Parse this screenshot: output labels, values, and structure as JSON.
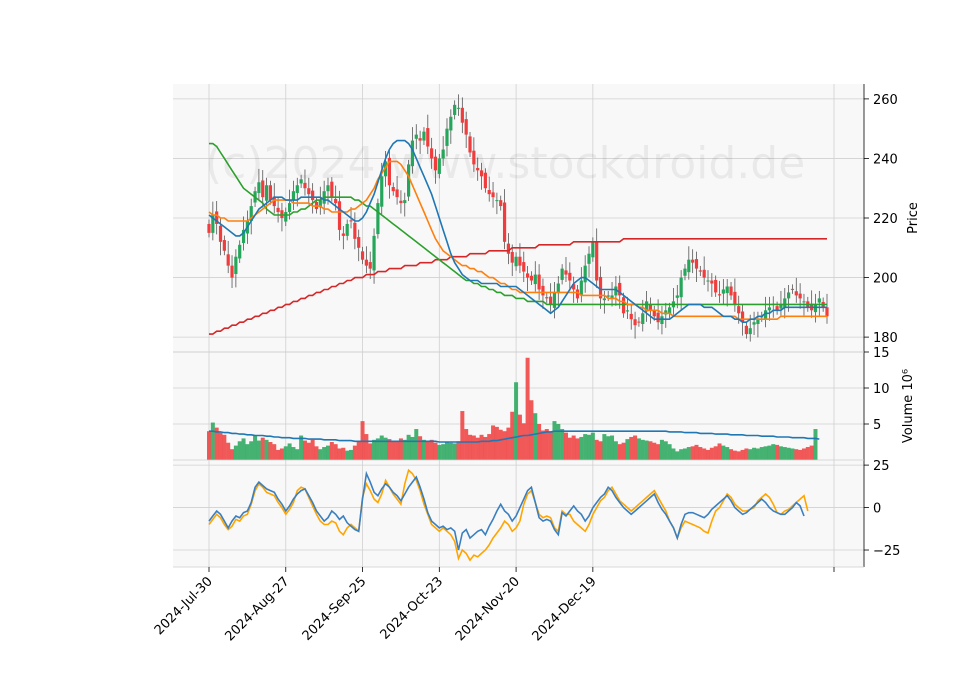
{
  "chart_data": {
    "type": "candlestick",
    "watermark": "(c)2024 www.stockdroid.de",
    "x_tick_labels": [
      "2024-Jul-30",
      "2024-Aug-27",
      "2024-Sep-25",
      "2024-Oct-23",
      "2024-Nov-20",
      "2024-Dec-19"
    ],
    "price_panel": {
      "ylabel": "Price",
      "ylim": [
        175,
        265
      ],
      "yticks": [
        180,
        200,
        220,
        240,
        260
      ],
      "colors": {
        "up": "#26a65b",
        "down": "#f03c3c",
        "ma_fast": "#1f77b4",
        "ma_mid": "#ff7f0e",
        "ma_slow": "#2ca02c",
        "ma_long": "#d62728"
      },
      "close": [
        215,
        221,
        218,
        212,
        209,
        204,
        200,
        207,
        211,
        216,
        219,
        224,
        229,
        232,
        227,
        231,
        226,
        224,
        222,
        220,
        222,
        225,
        229,
        231,
        233,
        230,
        228,
        226,
        223,
        226,
        229,
        231,
        227,
        225,
        216,
        214,
        218,
        219,
        213,
        210,
        206,
        204,
        203,
        214,
        225,
        234,
        239,
        231,
        229,
        227,
        225,
        226,
        238,
        246,
        248,
        246,
        249,
        244,
        240,
        236,
        240,
        243,
        250,
        254,
        258,
        257,
        252,
        248,
        242,
        238,
        236,
        234,
        230,
        228,
        227,
        226,
        224,
        212,
        208,
        205,
        207,
        204,
        202,
        200,
        199,
        201,
        196,
        194,
        193,
        191,
        195,
        198,
        203,
        201,
        199,
        196,
        193,
        199,
        204,
        208,
        212,
        199,
        193,
        193,
        194,
        194,
        197,
        194,
        188,
        189,
        186,
        184,
        185,
        188,
        192,
        189,
        187,
        185,
        187,
        189,
        190,
        192,
        194,
        200,
        203,
        206,
        205,
        203,
        202,
        200,
        199,
        198,
        195,
        194,
        196,
        197,
        194,
        191,
        188,
        185,
        181,
        183,
        185,
        186,
        187,
        189,
        190,
        191,
        189,
        191,
        193,
        195,
        196,
        194,
        193,
        192,
        190,
        189,
        191,
        193,
        190,
        187
      ],
      "ma_fast": [
        221,
        220,
        219,
        218,
        217,
        216,
        215,
        214,
        214,
        215,
        217,
        219,
        221,
        223,
        224,
        225,
        226,
        227,
        227,
        227,
        226,
        226,
        226,
        226,
        227,
        227,
        227,
        227,
        227,
        227,
        226,
        226,
        225,
        224,
        223,
        222,
        221,
        220,
        219,
        219,
        220,
        222,
        225,
        228,
        232,
        236,
        240,
        243,
        245,
        246,
        246,
        246,
        245,
        243,
        240,
        237,
        234,
        231,
        228,
        224,
        220,
        216,
        212,
        208,
        205,
        203,
        201,
        200,
        199,
        199,
        199,
        198,
        198,
        198,
        198,
        198,
        197,
        197,
        197,
        197,
        197,
        196,
        195,
        194,
        193,
        192,
        191,
        190,
        189,
        188,
        189,
        190,
        192,
        194,
        196,
        198,
        199,
        200,
        200,
        199,
        198,
        197,
        196,
        196,
        196,
        196,
        196,
        195,
        194,
        193,
        192,
        191,
        190,
        189,
        188,
        187,
        186,
        186,
        186,
        186,
        186,
        187,
        188,
        189,
        190,
        191,
        191,
        191,
        191,
        190,
        190,
        190,
        189,
        188,
        187,
        187,
        187,
        186,
        186,
        185,
        185,
        186,
        186,
        187,
        187,
        188,
        188,
        189,
        189,
        189,
        190,
        190,
        190,
        190,
        190,
        190,
        190,
        190,
        190,
        190,
        190,
        190
      ],
      "ma_mid": [
        222,
        221,
        221,
        220,
        220,
        219,
        219,
        219,
        219,
        219,
        219,
        220,
        221,
        222,
        223,
        224,
        225,
        226,
        226,
        226,
        226,
        226,
        225,
        225,
        225,
        225,
        225,
        224,
        224,
        224,
        223,
        223,
        222,
        222,
        222,
        222,
        222,
        223,
        223,
        224,
        225,
        226,
        228,
        230,
        233,
        235,
        237,
        239,
        239,
        239,
        238,
        236,
        234,
        231,
        228,
        225,
        222,
        219,
        216,
        213,
        211,
        209,
        208,
        207,
        206,
        205,
        204,
        204,
        203,
        203,
        202,
        202,
        201,
        200,
        200,
        199,
        198,
        198,
        197,
        196,
        196,
        195,
        195,
        195,
        195,
        195,
        195,
        195,
        195,
        195,
        195,
        195,
        195,
        195,
        195,
        195,
        195,
        194,
        194,
        194,
        194,
        194,
        194,
        194,
        193,
        193,
        193,
        192,
        192,
        191,
        191,
        191,
        190,
        190,
        189,
        189,
        189,
        189,
        188,
        188,
        188,
        187,
        187,
        187,
        187,
        187,
        187,
        187,
        187,
        187,
        187,
        187,
        187,
        187,
        187,
        187,
        187,
        187,
        186,
        186,
        186,
        186,
        186,
        186,
        186,
        186,
        186,
        186,
        186,
        187,
        187,
        187,
        187,
        187,
        187,
        187,
        187,
        187,
        187,
        187,
        187,
        187
      ],
      "ma_slow": [
        245,
        245,
        244,
        242,
        240,
        238,
        236,
        234,
        232,
        230,
        229,
        228,
        227,
        226,
        225,
        223,
        222,
        221,
        221,
        221,
        221,
        221,
        222,
        222,
        223,
        223,
        224,
        225,
        226,
        226,
        227,
        227,
        227,
        227,
        227,
        227,
        227,
        227,
        226,
        226,
        225,
        224,
        224,
        223,
        222,
        221,
        220,
        219,
        218,
        217,
        216,
        215,
        214,
        213,
        212,
        211,
        210,
        209,
        208,
        207,
        206,
        205,
        204,
        203,
        202,
        201,
        200,
        199,
        199,
        198,
        198,
        197,
        197,
        196,
        196,
        195,
        195,
        194,
        194,
        194,
        193,
        193,
        193,
        192,
        192,
        192,
        192,
        192,
        191,
        191,
        191,
        191,
        191,
        191,
        191,
        191,
        191,
        191,
        191,
        191,
        191,
        191,
        191,
        191,
        191,
        191,
        191,
        191,
        191,
        191,
        191,
        191,
        191,
        191,
        191,
        191,
        191,
        191,
        191,
        191,
        191,
        191,
        191,
        191,
        191,
        191,
        191,
        191,
        191,
        191,
        191,
        191,
        191,
        191,
        191,
        191,
        191,
        191,
        191,
        191,
        191,
        191,
        191,
        191,
        191,
        191,
        191,
        191,
        191,
        191,
        191,
        191,
        191,
        191,
        191,
        191,
        191,
        191,
        191,
        191,
        191,
        191
      ],
      "ma_long": [
        181,
        181,
        182,
        182,
        183,
        183,
        184,
        184,
        185,
        185,
        186,
        186,
        187,
        187,
        188,
        188,
        189,
        189,
        190,
        190,
        191,
        191,
        192,
        192,
        193,
        193,
        194,
        194,
        195,
        195,
        196,
        196,
        197,
        197,
        198,
        198,
        199,
        199,
        200,
        200,
        200,
        201,
        201,
        201,
        202,
        202,
        202,
        203,
        203,
        203,
        203,
        204,
        204,
        204,
        204,
        205,
        205,
        205,
        205,
        206,
        206,
        206,
        206,
        207,
        207,
        207,
        207,
        207,
        208,
        208,
        208,
        208,
        208,
        209,
        209,
        209,
        209,
        209,
        209,
        210,
        210,
        210,
        210,
        210,
        210,
        210,
        211,
        211,
        211,
        211,
        211,
        211,
        211,
        211,
        211,
        212,
        212,
        212,
        212,
        212,
        212,
        212,
        212,
        212,
        212,
        212,
        212,
        212,
        213,
        213,
        213,
        213,
        213,
        213,
        213,
        213,
        213,
        213,
        213,
        213,
        213,
        213,
        213,
        213,
        213,
        213,
        213,
        213,
        213,
        213,
        213,
        213,
        213,
        213,
        213,
        213,
        213,
        213,
        213,
        213,
        213,
        213,
        213,
        213,
        213,
        213,
        213,
        213,
        213,
        213,
        213,
        213,
        213,
        213,
        213,
        213,
        213,
        213,
        213,
        213,
        213,
        213
      ]
    },
    "volume_panel": {
      "ylabel": "Volume  10⁶",
      "ylim": [
        0,
        15
      ],
      "yticks": [
        5,
        10,
        15
      ],
      "ma_color": "#1f77b4",
      "volume": [
        4.0,
        5.2,
        4.5,
        3.8,
        3.5,
        2.4,
        1.5,
        2.0,
        2.6,
        3.0,
        2.2,
        2.6,
        3.4,
        2.7,
        3.1,
        2.8,
        2.5,
        2.2,
        1.4,
        1.6,
        1.9,
        2.3,
        1.8,
        1.5,
        3.4,
        2.7,
        2.4,
        2.8,
        1.9,
        1.5,
        1.8,
        2.0,
        2.5,
        2.2,
        1.6,
        1.7,
        1.3,
        1.4,
        2.0,
        2.6,
        5.4,
        3.6,
        2.3,
        2.8,
        3.0,
        3.4,
        3.1,
        2.9,
        2.6,
        2.5,
        3.0,
        2.8,
        3.5,
        3.2,
        4.3,
        3.3,
        2.8,
        2.6,
        2.8,
        2.4,
        2.1,
        2.2,
        2.5,
        2.4,
        2.3,
        2.6,
        6.8,
        4.3,
        3.5,
        3.4,
        3.1,
        3.5,
        3.2,
        3.6,
        4.8,
        4.6,
        4.2,
        4.0,
        4.5,
        6.7,
        10.8,
        6.3,
        5.1,
        14.2,
        8.3,
        6.5,
        5.0,
        4.1,
        4.3,
        3.9,
        5.4,
        5.0,
        4.3,
        3.8,
        3.1,
        3.4,
        3.0,
        3.2,
        3.6,
        3.5,
        3.8,
        2.8,
        2.6,
        3.6,
        3.3,
        3.4,
        2.6,
        2.2,
        2.4,
        2.9,
        3.2,
        3.4,
        3.0,
        2.8,
        2.7,
        2.6,
        2.4,
        2.2,
        2.8,
        2.6,
        2.2,
        1.6,
        1.2,
        1.5,
        1.6,
        1.8,
        1.9,
        2.1,
        1.8,
        1.6,
        1.4,
        1.7,
        1.9,
        2.3,
        2.0,
        1.8,
        1.5,
        1.3,
        1.2,
        1.4,
        1.6,
        1.5,
        1.7,
        1.6,
        1.8,
        1.9,
        2.0,
        2.2,
        2.1,
        1.9,
        1.8,
        1.7,
        1.6,
        1.5,
        1.4,
        1.6,
        1.8,
        2.0,
        4.3
      ],
      "volume_ma": [
        4.0,
        4.0,
        3.9,
        3.9,
        3.8,
        3.8,
        3.7,
        3.7,
        3.6,
        3.6,
        3.5,
        3.5,
        3.4,
        3.4,
        3.4,
        3.3,
        3.3,
        3.2,
        3.2,
        3.1,
        3.1,
        3.1,
        3.0,
        3.0,
        3.0,
        3.0,
        2.9,
        2.9,
        2.9,
        2.9,
        2.8,
        2.8,
        2.8,
        2.8,
        2.7,
        2.7,
        2.7,
        2.7,
        2.6,
        2.6,
        2.6,
        2.6,
        2.6,
        2.6,
        2.6,
        2.6,
        2.6,
        2.6,
        2.6,
        2.6,
        2.6,
        2.6,
        2.6,
        2.6,
        2.6,
        2.6,
        2.6,
        2.6,
        2.6,
        2.6,
        2.5,
        2.5,
        2.5,
        2.5,
        2.5,
        2.5,
        2.5,
        2.5,
        2.5,
        2.5,
        2.5,
        2.6,
        2.6,
        2.6,
        2.7,
        2.7,
        2.8,
        2.9,
        3.0,
        3.1,
        3.2,
        3.3,
        3.4,
        3.4,
        3.5,
        3.6,
        3.7,
        3.8,
        3.9,
        3.9,
        4.0,
        4.0,
        4.0,
        4.0,
        4.0,
        4.0,
        4.0,
        4.0,
        4.0,
        4.0,
        4.0,
        4.0,
        4.0,
        4.0,
        4.0,
        4.0,
        4.0,
        4.0,
        4.0,
        4.0,
        4.0,
        4.0,
        4.0,
        4.0,
        4.0,
        4.0,
        4.0,
        4.0,
        4.0,
        4.0,
        3.9,
        3.9,
        3.9,
        3.9,
        3.8,
        3.8,
        3.8,
        3.8,
        3.7,
        3.7,
        3.7,
        3.7,
        3.6,
        3.6,
        3.6,
        3.6,
        3.5,
        3.5,
        3.5,
        3.5,
        3.4,
        3.4,
        3.4,
        3.4,
        3.3,
        3.3,
        3.3,
        3.3,
        3.2,
        3.2,
        3.2,
        3.2,
        3.1,
        3.1,
        3.1,
        3.1,
        3.0,
        3.0,
        3.0,
        2.9
      ]
    },
    "oscillator_panel": {
      "ylim": [
        -35,
        28
      ],
      "yticks": [
        -25,
        0,
        25
      ],
      "colors": {
        "line1": "#3a7fc0",
        "line2": "#ffa500"
      },
      "line1": [
        -8,
        -5,
        -2,
        -4,
        -8,
        -12,
        -8,
        -5,
        -6,
        -3,
        -2,
        3,
        12,
        15,
        13,
        11,
        10,
        9,
        5,
        2,
        -2,
        1,
        5,
        8,
        10,
        11,
        7,
        3,
        -2,
        -5,
        -8,
        -6,
        -2,
        -4,
        -7,
        -5,
        -9,
        -11,
        -13,
        -14,
        5,
        20,
        15,
        9,
        7,
        11,
        14,
        12,
        9,
        7,
        4,
        8,
        12,
        15,
        18,
        12,
        5,
        -3,
        -8,
        -10,
        -12,
        -11,
        -13,
        -12,
        -14,
        -25,
        -15,
        -13,
        -18,
        -16,
        -14,
        -13,
        -16,
        -11,
        -7,
        -2,
        2,
        -2,
        -4,
        -8,
        -5,
        0,
        5,
        10,
        12,
        3,
        -6,
        -8,
        -7,
        -8,
        -13,
        -16,
        -3,
        -5,
        -2,
        1,
        -2,
        -4,
        -8,
        -5,
        0,
        3,
        6,
        8,
        12,
        10,
        6,
        3,
        0,
        -2,
        -4,
        -2,
        0,
        2,
        4,
        6,
        8,
        3,
        -1,
        -4,
        -8,
        -12,
        -18,
        -10,
        -4,
        -3,
        -3,
        -4,
        -5,
        -6,
        -4,
        -1,
        1,
        3,
        5,
        7,
        4,
        0,
        -2,
        -4,
        -3,
        -1,
        1,
        3,
        5,
        3,
        0,
        -2,
        -3,
        -4,
        -4,
        -2,
        0,
        3,
        1,
        -5
      ],
      "line2": [
        -10,
        -7,
        -4,
        -6,
        -10,
        -13,
        -11,
        -7,
        -8,
        -5,
        -4,
        2,
        10,
        14,
        12,
        9,
        8,
        7,
        3,
        0,
        -4,
        -1,
        3,
        10,
        12,
        11,
        6,
        1,
        -4,
        -8,
        -10,
        -10,
        -8,
        -9,
        -14,
        -16,
        -12,
        -10,
        -12,
        -14,
        6,
        14,
        10,
        5,
        3,
        8,
        16,
        12,
        8,
        5,
        2,
        14,
        22,
        20,
        16,
        10,
        2,
        -4,
        -10,
        -12,
        -14,
        -12,
        -14,
        -16,
        -20,
        -30,
        -25,
        -27,
        -31,
        -28,
        -29,
        -27,
        -25,
        -22,
        -18,
        -15,
        -12,
        -8,
        -10,
        -14,
        -12,
        -8,
        2,
        8,
        10,
        3,
        -4,
        -6,
        -5,
        -6,
        -12,
        -14,
        -2,
        -4,
        -4,
        -8,
        -10,
        -12,
        -14,
        -10,
        -4,
        0,
        4,
        6,
        10,
        12,
        8,
        4,
        2,
        0,
        -2,
        0,
        2,
        4,
        6,
        8,
        10,
        6,
        2,
        -2,
        -8,
        -12,
        -18,
        -12,
        -8,
        -9,
        -10,
        -11,
        -12,
        -14,
        -15,
        -8,
        -2,
        0,
        4,
        8,
        6,
        2,
        0,
        -2,
        -2,
        -1,
        0,
        4,
        6,
        8,
        6,
        2,
        -3,
        -4,
        -2,
        -1,
        1,
        3,
        5,
        7,
        -2
      ]
    }
  }
}
